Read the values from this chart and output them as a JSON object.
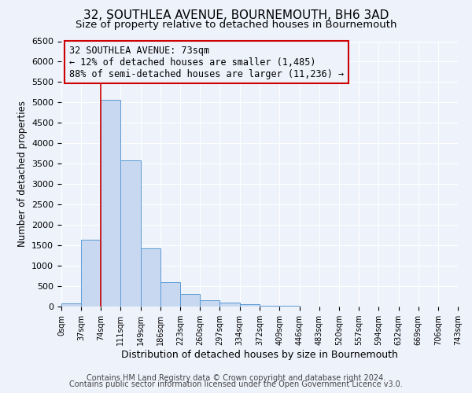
{
  "title": "32, SOUTHLEA AVENUE, BOURNEMOUTH, BH6 3AD",
  "subtitle": "Size of property relative to detached houses in Bournemouth",
  "xlabel": "Distribution of detached houses by size in Bournemouth",
  "ylabel": "Number of detached properties",
  "bin_edges": [
    0,
    37,
    74,
    111,
    149,
    186,
    223,
    260,
    297,
    334,
    372,
    409,
    446,
    483,
    520,
    557,
    594,
    632,
    669,
    706,
    743
  ],
  "bin_counts": [
    70,
    1640,
    5060,
    3580,
    1430,
    590,
    300,
    145,
    100,
    50,
    20,
    10,
    5,
    2,
    1,
    0,
    0,
    0,
    0,
    0
  ],
  "bar_color": "#c8d8f0",
  "bar_edge_color": "#5b9bd5",
  "property_line_x": 73,
  "property_line_color": "#cc0000",
  "annotation_line1": "32 SOUTHLEA AVENUE: 73sqm",
  "annotation_line2": "← 12% of detached houses are smaller (1,485)",
  "annotation_line3": "88% of semi-detached houses are larger (11,236) →",
  "annotation_box_color": "#cc0000",
  "annotation_fontsize": 8.5,
  "ylim": [
    0,
    6500
  ],
  "yticks": [
    0,
    500,
    1000,
    1500,
    2000,
    2500,
    3000,
    3500,
    4000,
    4500,
    5000,
    5500,
    6000,
    6500
  ],
  "tick_labels": [
    "0sqm",
    "37sqm",
    "74sqm",
    "111sqm",
    "149sqm",
    "186sqm",
    "223sqm",
    "260sqm",
    "297sqm",
    "334sqm",
    "372sqm",
    "409sqm",
    "446sqm",
    "483sqm",
    "520sqm",
    "557sqm",
    "594sqm",
    "632sqm",
    "669sqm",
    "706sqm",
    "743sqm"
  ],
  "footer_line1": "Contains HM Land Registry data © Crown copyright and database right 2024.",
  "footer_line2": "Contains public sector information licensed under the Open Government Licence v3.0.",
  "background_color": "#eef2fb",
  "plot_bg_color": "#eef2fb",
  "grid_color": "#ffffff",
  "title_fontsize": 11,
  "subtitle_fontsize": 9.5,
  "xlabel_fontsize": 9,
  "ylabel_fontsize": 8.5,
  "footer_fontsize": 7,
  "ytick_fontsize": 8,
  "xtick_fontsize": 7
}
